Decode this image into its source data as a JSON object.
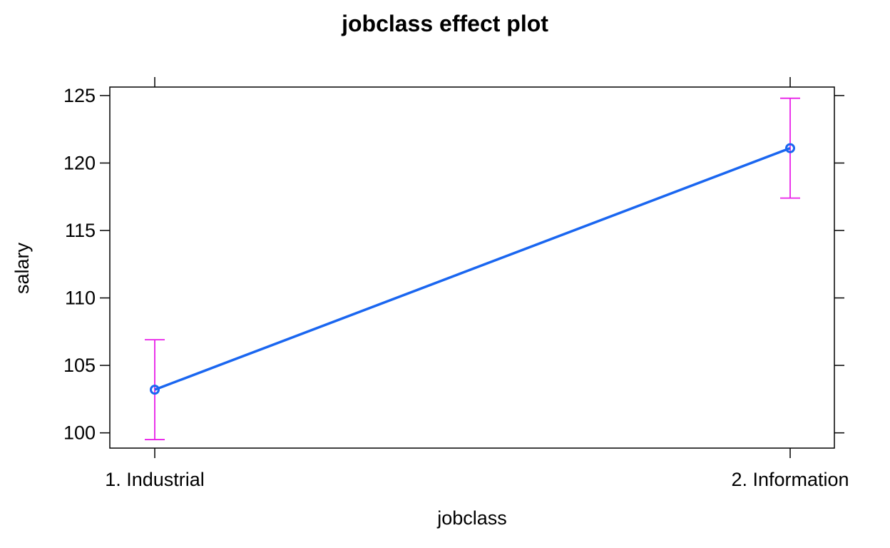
{
  "chart_data": {
    "type": "line",
    "title": "jobclass effect plot",
    "xlabel": "jobclass",
    "ylabel": "salary",
    "categories": [
      "1. Industrial",
      "2. Information"
    ],
    "series": [
      {
        "values": [
          103.2,
          121.1
        ],
        "lower": [
          99.5,
          117.4
        ],
        "upper": [
          106.9,
          124.8
        ]
      }
    ],
    "yticks": [
      100,
      105,
      110,
      115,
      120,
      125
    ],
    "ylim": [
      98.87,
      125.63
    ],
    "grid": false,
    "colors": {
      "line": "#1a66f0",
      "errorbar": "#e81fe8"
    }
  }
}
